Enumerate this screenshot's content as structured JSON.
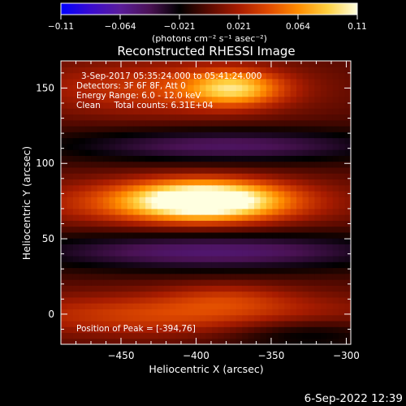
{
  "colorbar": {
    "ticks": [
      "-0.11",
      "-0.064",
      "-0.021",
      "0.021",
      "0.064",
      "0.11"
    ],
    "unit_label": "(photons cm⁻² s⁻¹ asec⁻²)",
    "colors": [
      "#0000ff",
      "#3a0bd0",
      "#5a1d9a",
      "#4a1254",
      "#000000",
      "#5a0a00",
      "#a81c00",
      "#e04a00",
      "#ff8c00",
      "#ffd040",
      "#ffffe0"
    ]
  },
  "title": "Reconstructed RHESSI Image",
  "annotations": {
    "time_range": "3-Sep-2017 05:35:24.000 to 05:41:24.000",
    "detectors": "Detectors: 3F 6F 8F, Att 0",
    "energy": "Energy Range: 6.0 - 12.0 keV",
    "clean": "Clean     Total counts: 6.31E+04",
    "peak": "Position of Peak = [-394,76]"
  },
  "footer_date": "6-Sep-2022 12:39",
  "chart_data": {
    "type": "heatmap",
    "title": "Reconstructed RHESSI Image",
    "xlabel": "Heliocentric X (arcsec)",
    "ylabel": "Heliocentric Y (arcsec)",
    "xlim": [
      -490,
      -297
    ],
    "ylim": [
      -20,
      168
    ],
    "xticks": [
      -450,
      -400,
      -350,
      -300
    ],
    "yticks": [
      0,
      50,
      100,
      150
    ],
    "xtick_labels": [
      "−450",
      "−400",
      "−350",
      "−300"
    ],
    "ytick_labels": [
      "0",
      "50",
      "100",
      "150"
    ],
    "colorbar_range": [
      -0.11,
      0.11
    ],
    "peak_position": [
      -394,
      76
    ],
    "features": [
      {
        "kind": "positive",
        "x": -394,
        "y": 76,
        "sx": 35,
        "sy": 9,
        "amp": 0.11
      },
      {
        "kind": "positive",
        "x": -410,
        "y": 74,
        "sx": 70,
        "sy": 11,
        "amp": 0.05
      },
      {
        "kind": "positive",
        "x": -375,
        "y": 150,
        "sx": 22,
        "sy": 8,
        "amp": 0.07
      },
      {
        "kind": "positive",
        "x": -420,
        "y": 150,
        "sx": 65,
        "sy": 13,
        "amp": 0.04
      },
      {
        "kind": "positive",
        "x": -410,
        "y": 0,
        "sx": 90,
        "sy": 10,
        "amp": 0.045
      },
      {
        "kind": "positive",
        "x": -380,
        "y": 12,
        "sx": 30,
        "sy": 7,
        "amp": 0.02
      },
      {
        "kind": "negative",
        "x": -380,
        "y": 112,
        "sx": 80,
        "sy": 8,
        "amp": 0.045
      },
      {
        "kind": "negative",
        "x": -390,
        "y": 42,
        "sx": 90,
        "sy": 9,
        "amp": 0.05
      },
      {
        "kind": "negative",
        "x": -330,
        "y": -12,
        "sx": 40,
        "sy": 8,
        "amp": 0.03
      }
    ]
  }
}
